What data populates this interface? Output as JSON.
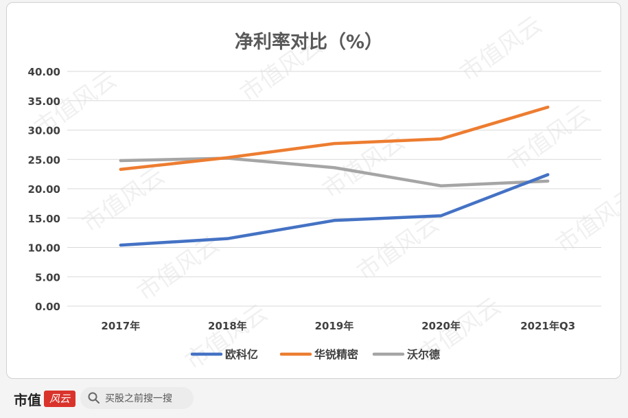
{
  "chart_data": {
    "type": "line",
    "title": "净利率对比（%）",
    "categories": [
      "2017年",
      "2018年",
      "2019年",
      "2020年",
      "2021年Q3"
    ],
    "ylim": [
      0,
      40
    ],
    "yticks": [
      "0.00",
      "5.00",
      "10.00",
      "15.00",
      "20.00",
      "25.00",
      "30.00",
      "35.00",
      "40.00"
    ],
    "grid": true,
    "legend_position": "bottom",
    "series": [
      {
        "name": "欧科亿",
        "color": "#4472c4",
        "values": [
          10.4,
          11.5,
          14.6,
          15.4,
          22.4
        ]
      },
      {
        "name": "华锐精密",
        "color": "#ed7d31",
        "values": [
          23.3,
          25.3,
          27.7,
          28.5,
          33.9
        ]
      },
      {
        "name": "沃尔德",
        "color": "#a5a5a5",
        "values": [
          24.8,
          25.2,
          23.6,
          20.5,
          21.3
        ]
      }
    ]
  },
  "watermark": "市值风云",
  "footer": {
    "brand": "市值",
    "brand_logo": "风云",
    "search_text": "买股之前搜一搜",
    "search_icon": "search-icon"
  }
}
